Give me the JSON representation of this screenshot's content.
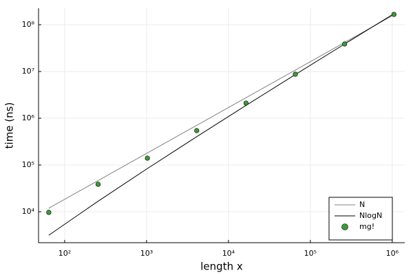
{
  "chart_data": {
    "type": "line",
    "x_label": "length x",
    "y_label": "time (ns)",
    "xlog": true,
    "ylog": true,
    "grid": true,
    "legend": "bottom-right",
    "xlim": [
      48,
      1420000
    ],
    "ylim": [
      2180,
      225000000
    ],
    "xticks": [
      {
        "value": 100,
        "label": "10²"
      },
      {
        "value": 1000,
        "label": "10³"
      },
      {
        "value": 10000,
        "label": "10⁴"
      },
      {
        "value": 100000,
        "label": "10⁵"
      },
      {
        "value": 1000000,
        "label": "10⁶"
      }
    ],
    "yticks": [
      {
        "value": 10000,
        "label": "10⁴"
      },
      {
        "value": 100000,
        "label": "10⁵"
      },
      {
        "value": 1000000,
        "label": "10⁶"
      },
      {
        "value": 10000000,
        "label": "10⁷"
      },
      {
        "value": 100000000,
        "label": "10⁸"
      }
    ],
    "x": [
      64,
      256,
      1024,
      4096,
      16384,
      65536,
      262144,
      1048576
    ],
    "series": [
      {
        "name": "N",
        "color": "#808080",
        "style": "line",
        "values": [
          11900,
          46400,
          181000,
          706000,
          2750000,
          10700000,
          41800000,
          163000000
        ]
      },
      {
        "name": "NlogN",
        "color": "#000000",
        "style": "line",
        "values": [
          3150,
          16800,
          84000,
          403000,
          1880000,
          8600000,
          38700000,
          172000000
        ]
      },
      {
        "name": "mg!",
        "color": "#3a9a3a",
        "style": "marker",
        "values": [
          9700,
          38700,
          140000,
          543000,
          2110000,
          8730000,
          38700000,
          166000000
        ]
      }
    ]
  }
}
